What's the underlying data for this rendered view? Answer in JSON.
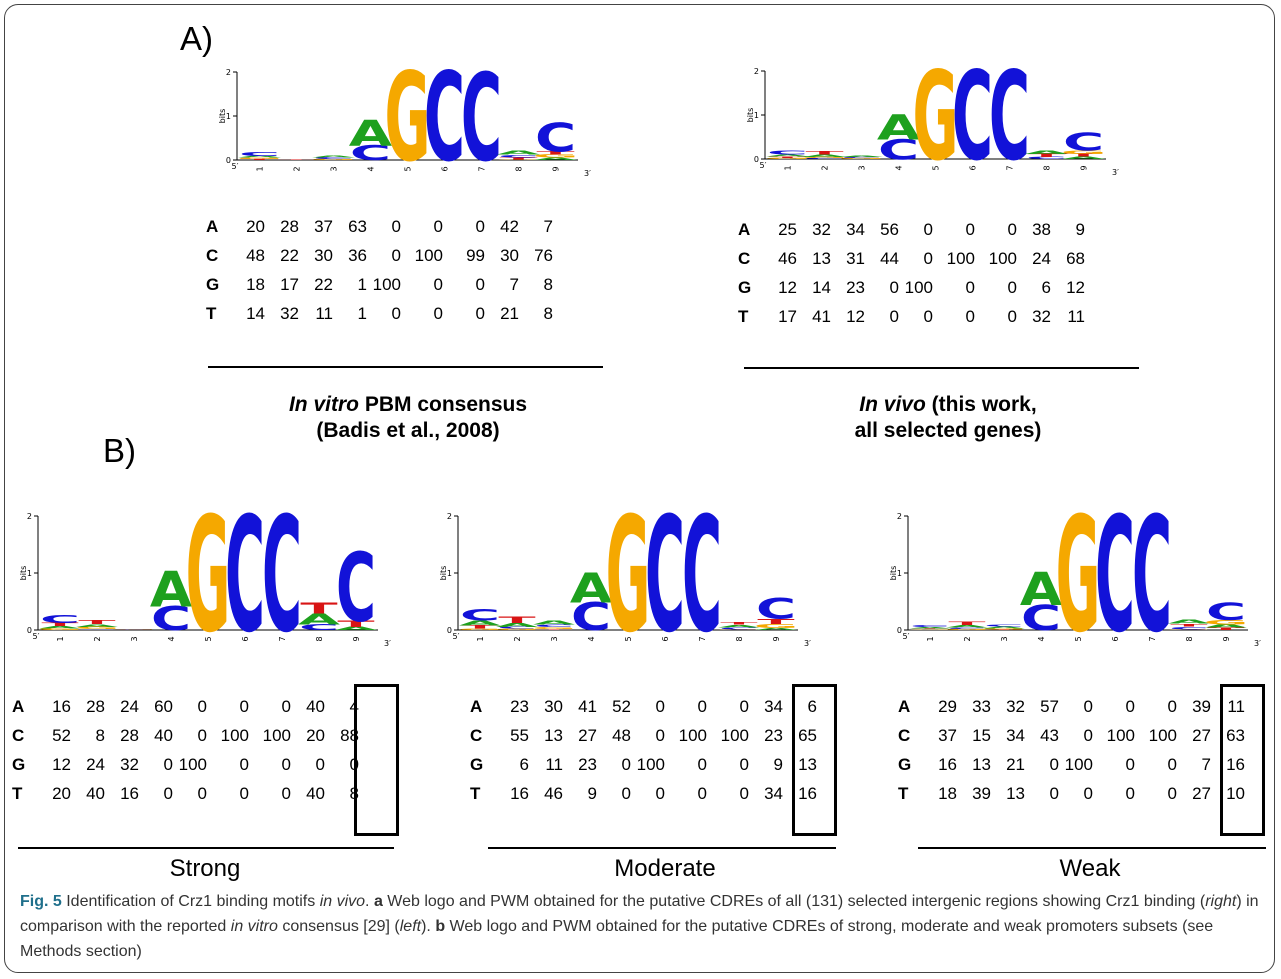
{
  "panels": {
    "a_label": "A)",
    "b_label": "B)"
  },
  "logo_axis": {
    "ylabel": "bits",
    "yticks": [
      "0",
      "1",
      "2"
    ],
    "five_prime": "5′",
    "three_prime": "3′",
    "positions": [
      "1",
      "2",
      "3",
      "4",
      "5",
      "6",
      "7",
      "8",
      "9"
    ]
  },
  "colors": {
    "A": "#1ea01e",
    "C": "#1212d8",
    "G": "#f5a800",
    "T": "#d81414"
  },
  "pwm_in_vitro": {
    "rows": [
      {
        "base": "A",
        "values": [
          "20",
          "28",
          "37",
          "63",
          "0",
          "0",
          "0",
          "42",
          "7"
        ]
      },
      {
        "base": "C",
        "values": [
          "48",
          "22",
          "30",
          "36",
          "0",
          "100",
          "99",
          "30",
          "76"
        ]
      },
      {
        "base": "G",
        "values": [
          "18",
          "17",
          "22",
          "1",
          "100",
          "0",
          "0",
          "7",
          "8"
        ]
      },
      {
        "base": "T",
        "values": [
          "14",
          "32",
          "11",
          "1",
          "0",
          "0",
          "0",
          "21",
          "8"
        ]
      }
    ],
    "label_italic": "In vitro",
    "label_rest": " PBM consensus",
    "label_line2": "(Badis et al., 2008)"
  },
  "pwm_in_vivo": {
    "rows": [
      {
        "base": "A",
        "values": [
          "25",
          "32",
          "34",
          "56",
          "0",
          "0",
          "0",
          "38",
          "9"
        ]
      },
      {
        "base": "C",
        "values": [
          "46",
          "13",
          "31",
          "44",
          "0",
          "100",
          "100",
          "24",
          "68"
        ]
      },
      {
        "base": "G",
        "values": [
          "12",
          "14",
          "23",
          "0",
          "100",
          "0",
          "0",
          "6",
          "12"
        ]
      },
      {
        "base": "T",
        "values": [
          "17",
          "41",
          "12",
          "0",
          "0",
          "0",
          "0",
          "32",
          "11"
        ]
      }
    ],
    "label_italic": "In vivo",
    "label_rest": " (this work,",
    "label_line2": "all selected genes)"
  },
  "pwm_strong": {
    "rows": [
      {
        "base": "A",
        "values": [
          "16",
          "28",
          "24",
          "60",
          "0",
          "0",
          "0",
          "40",
          "4"
        ]
      },
      {
        "base": "C",
        "values": [
          "52",
          "8",
          "28",
          "40",
          "0",
          "100",
          "100",
          "20",
          "88"
        ]
      },
      {
        "base": "G",
        "values": [
          "12",
          "24",
          "32",
          "0",
          "100",
          "0",
          "0",
          "0",
          "0"
        ]
      },
      {
        "base": "T",
        "values": [
          "20",
          "40",
          "16",
          "0",
          "0",
          "0",
          "0",
          "40",
          "8"
        ]
      }
    ],
    "label": "Strong"
  },
  "pwm_moderate": {
    "rows": [
      {
        "base": "A",
        "values": [
          "23",
          "30",
          "41",
          "52",
          "0",
          "0",
          "0",
          "34",
          "6"
        ]
      },
      {
        "base": "C",
        "values": [
          "55",
          "13",
          "27",
          "48",
          "0",
          "100",
          "100",
          "23",
          "65"
        ]
      },
      {
        "base": "G",
        "values": [
          "6",
          "11",
          "23",
          "0",
          "100",
          "0",
          "0",
          "9",
          "13"
        ]
      },
      {
        "base": "T",
        "values": [
          "16",
          "46",
          "9",
          "0",
          "0",
          "0",
          "0",
          "34",
          "16"
        ]
      }
    ],
    "label": "Moderate"
  },
  "pwm_weak": {
    "rows": [
      {
        "base": "A",
        "values": [
          "29",
          "33",
          "32",
          "57",
          "0",
          "0",
          "0",
          "39",
          "11"
        ]
      },
      {
        "base": "C",
        "values": [
          "37",
          "15",
          "34",
          "43",
          "0",
          "100",
          "100",
          "27",
          "63"
        ]
      },
      {
        "base": "G",
        "values": [
          "16",
          "13",
          "21",
          "0",
          "100",
          "0",
          "0",
          "7",
          "16"
        ]
      },
      {
        "base": "T",
        "values": [
          "18",
          "39",
          "13",
          "0",
          "0",
          "0",
          "0",
          "27",
          "10"
        ]
      }
    ],
    "label": "Weak"
  },
  "caption": {
    "fig": "Fig. 5",
    "t1": " Identification of Crz1 binding motifs ",
    "t1i": "in vivo",
    "t2": ". ",
    "a": "a",
    "t3": " Web logo and PWM obtained for the putative CDREs of all (131) selected intergenic regions showing Crz1 binding (",
    "right": "right",
    "t4": ") in comparison with the reported ",
    "t4i": "in vitro",
    "t5": " consensus [29] (",
    "left": "left",
    "t6": "). ",
    "b": "b",
    "t7": " Web logo and PWM obtained for the putative CDREs of strong, moderate and weak promoters subsets (see Methods section)"
  }
}
